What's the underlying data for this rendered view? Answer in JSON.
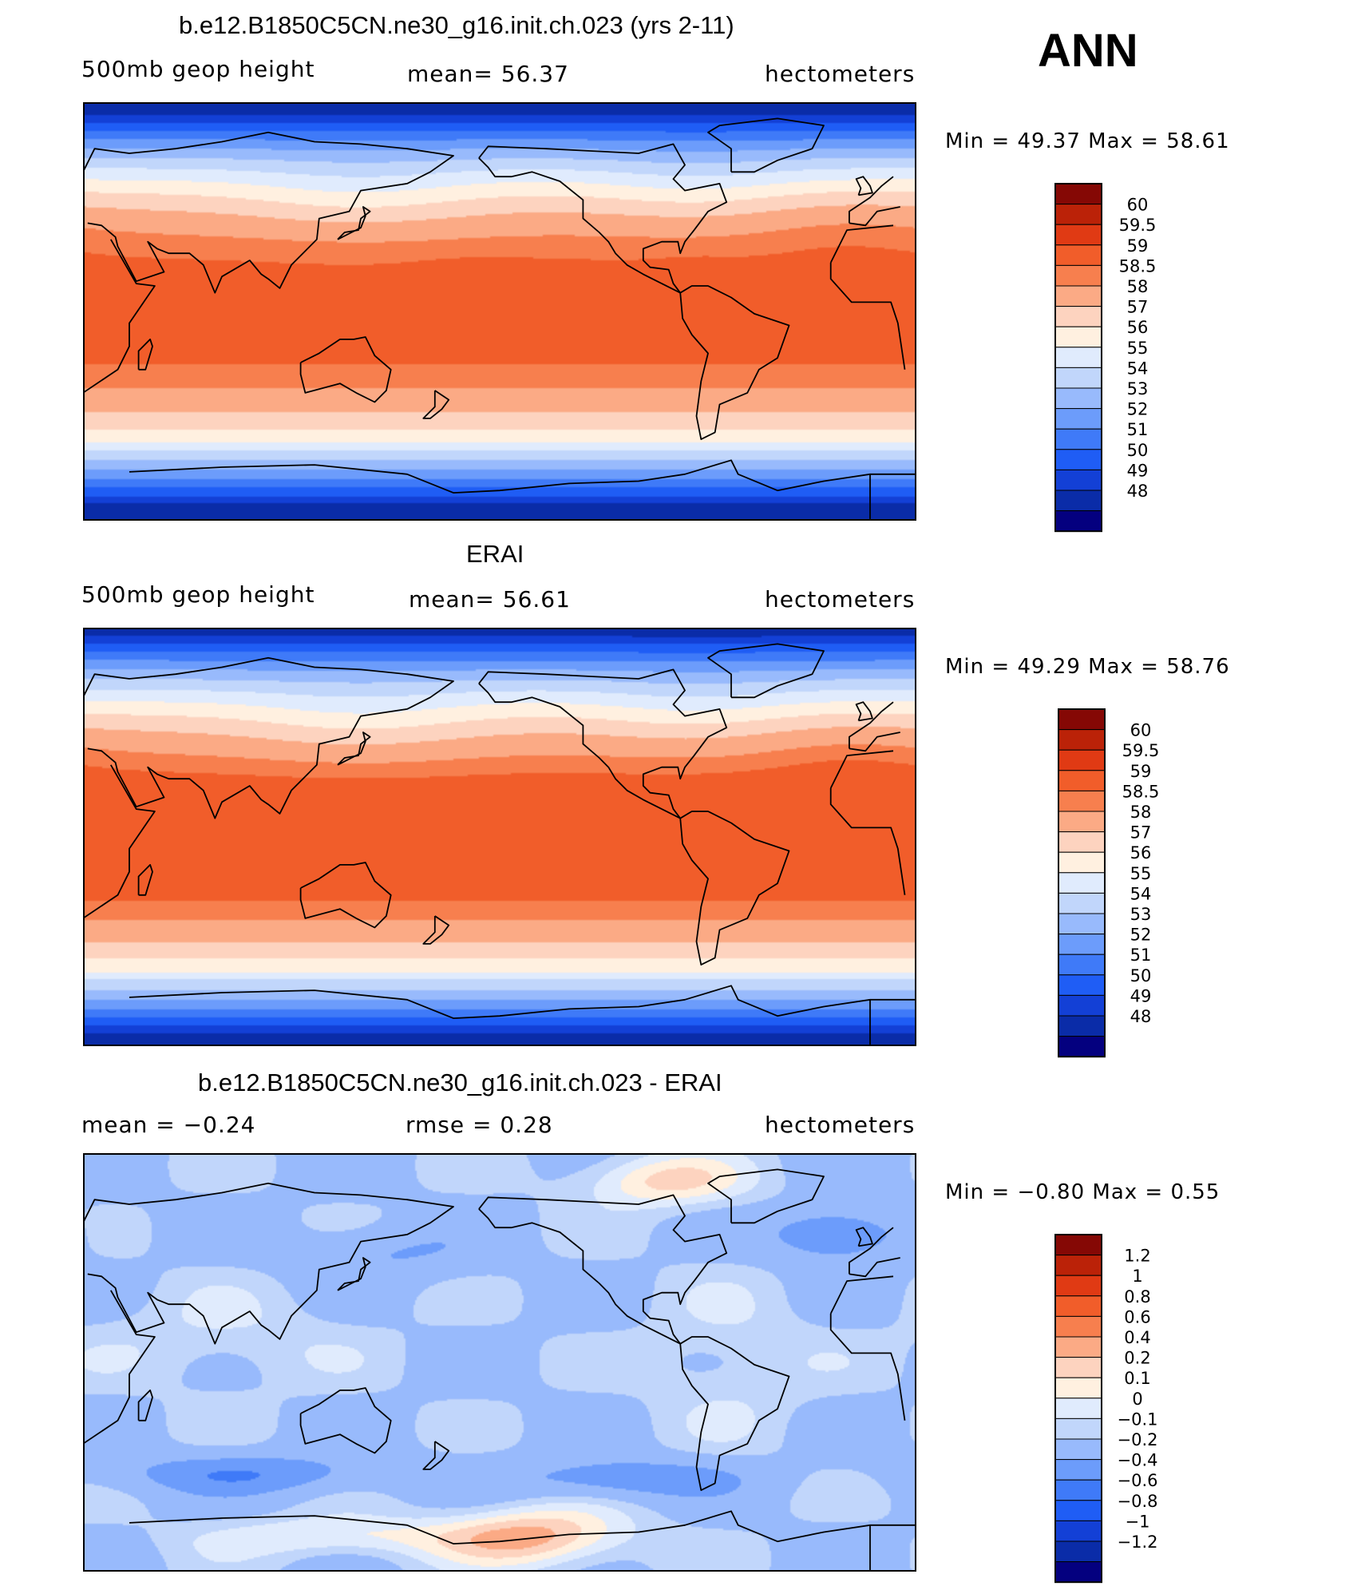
{
  "season_label": "ANN",
  "colors": {
    "abs_scale": [
      "#04007f",
      "#0a2ca8",
      "#1340d6",
      "#1f5df5",
      "#3f7af8",
      "#6c9cfb",
      "#98bafc",
      "#c1d6fb",
      "#e0ebfd",
      "#fff0e0",
      "#fdd3bf",
      "#fbaa85",
      "#f77f4e",
      "#f15d2a",
      "#e03a14",
      "#bb2208",
      "#850805"
    ],
    "diff_scale": [
      "#04007f",
      "#0a2ca8",
      "#1340d6",
      "#1f5df5",
      "#3f7af8",
      "#6c9cfb",
      "#98bafc",
      "#c1d6fb",
      "#e0ebfd",
      "#fff0e0",
      "#fdd3bf",
      "#fbaa85",
      "#f77f4e",
      "#f15d2a",
      "#e03a14",
      "#bb2208",
      "#850805"
    ],
    "coastline": "#000000"
  },
  "panels": [
    {
      "title": "b.e12.B1850C5CN.ne30_g16.init.ch.023 (yrs 2-11)",
      "left_label": "500mb geop height",
      "center_label": "mean=   56.37",
      "right_label": "hectometers",
      "min_max": "Min =   49.37  Max =   58.61",
      "colorbar_labels": [
        "60",
        "59.5",
        "59",
        "58.5",
        "58",
        "57",
        "56",
        "55",
        "54",
        "53",
        "52",
        "51",
        "50",
        "49",
        "48"
      ],
      "field": "model"
    },
    {
      "title": "ERAI",
      "left_label": "500mb geop height",
      "center_label": "mean=   56.61",
      "right_label": "hectometers",
      "min_max": "Min =   49.29  Max =   58.76",
      "colorbar_labels": [
        "60",
        "59.5",
        "59",
        "58.5",
        "58",
        "57",
        "56",
        "55",
        "54",
        "53",
        "52",
        "51",
        "50",
        "49",
        "48"
      ],
      "field": "obs"
    },
    {
      "title": "b.e12.B1850C5CN.ne30_g16.init.ch.023 - ERAI",
      "left_label": "mean =   −0.24",
      "center_label": "rmse =     0.28",
      "right_label": "hectometers",
      "min_max": "Min =   −0.80  Max =     0.55",
      "colorbar_labels": [
        "1.2",
        "1",
        "0.8",
        "0.6",
        "0.4",
        "0.2",
        "0.1",
        "0",
        "−0.1",
        "−0.2",
        "−0.4",
        "−0.6",
        "−0.8",
        "−1",
        "−1.2"
      ],
      "field": "diff"
    }
  ]
}
